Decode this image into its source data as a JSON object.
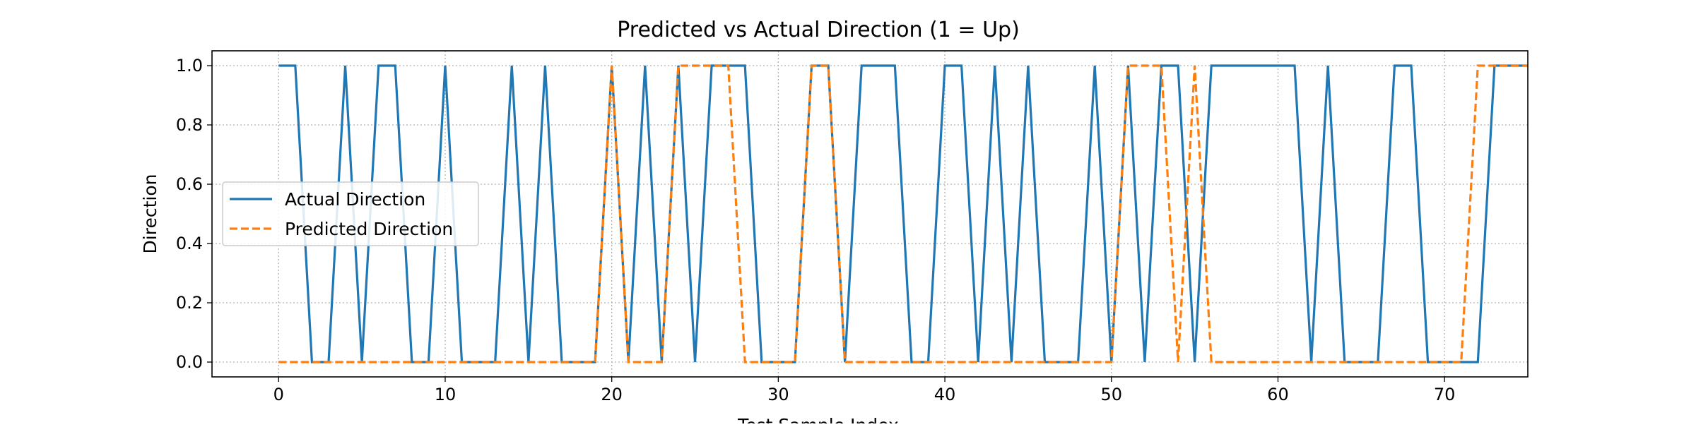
{
  "chart_data": {
    "type": "line",
    "title": "Predicted vs Actual Direction (1 = Up)",
    "xlabel": "Test Sample Index",
    "ylabel": "Direction",
    "xlim": [
      -4,
      75
    ],
    "ylim": [
      -0.05,
      1.05
    ],
    "x_ticks": [
      0,
      10,
      20,
      30,
      40,
      50,
      60,
      70
    ],
    "y_ticks": [
      "0.0",
      "0.2",
      "0.4",
      "0.6",
      "0.8",
      "1.0"
    ],
    "grid": true,
    "grid_style": "dotted",
    "legend_position": "center-left",
    "x": [
      0,
      1,
      2,
      3,
      4,
      5,
      6,
      7,
      8,
      9,
      10,
      11,
      12,
      13,
      14,
      15,
      16,
      17,
      18,
      19,
      20,
      21,
      22,
      23,
      24,
      25,
      26,
      27,
      28,
      29,
      30,
      31,
      32,
      33,
      34,
      35,
      36,
      37,
      38,
      39,
      40,
      41,
      42,
      43,
      44,
      45,
      46,
      47,
      48,
      49,
      50,
      51,
      52,
      53,
      54,
      55,
      56,
      57,
      58,
      59,
      60,
      61,
      62,
      63,
      64,
      65,
      66,
      67,
      68,
      69,
      70,
      71,
      72,
      73,
      74,
      75
    ],
    "series": [
      {
        "name": "Actual Direction",
        "color": "#1f77b4",
        "style": "solid",
        "values": [
          1,
          1,
          0,
          0,
          1,
          0,
          1,
          1,
          0,
          0,
          1,
          0,
          0,
          0,
          1,
          0,
          1,
          0,
          0,
          0,
          1,
          0,
          1,
          0,
          1,
          0,
          1,
          1,
          1,
          0,
          0,
          0,
          1,
          1,
          0,
          1,
          1,
          1,
          0,
          0,
          1,
          1,
          0,
          1,
          0,
          1,
          0,
          0,
          0,
          1,
          0,
          1,
          0,
          1,
          1,
          0,
          1,
          1,
          1,
          1,
          1,
          1,
          0,
          1,
          0,
          0,
          0,
          1,
          1,
          0,
          0,
          0,
          0,
          1,
          1,
          1
        ]
      },
      {
        "name": "Predicted Direction",
        "color": "#ff7f0e",
        "style": "dashed",
        "values": [
          0,
          0,
          0,
          0,
          0,
          0,
          0,
          0,
          0,
          0,
          0,
          0,
          0,
          0,
          0,
          0,
          0,
          0,
          0,
          0,
          1,
          0,
          0,
          0,
          1,
          1,
          1,
          1,
          0,
          0,
          0,
          0,
          1,
          1,
          0,
          0,
          0,
          0,
          0,
          0,
          0,
          0,
          0,
          0,
          0,
          0,
          0,
          0,
          0,
          0,
          0,
          1,
          1,
          1,
          0,
          1,
          0,
          0,
          0,
          0,
          0,
          0,
          0,
          0,
          0,
          0,
          0,
          0,
          0,
          0,
          0,
          0,
          1,
          1,
          1,
          1
        ]
      }
    ]
  }
}
